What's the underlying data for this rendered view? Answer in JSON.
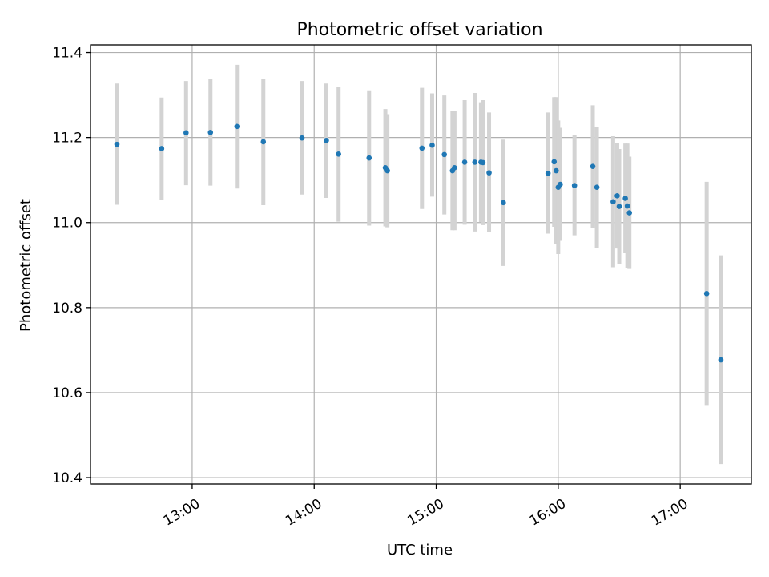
{
  "chart_data": {
    "type": "scatter",
    "title": "Photometric offset variation",
    "xlabel": "UTC time",
    "ylabel": "Photometric offset",
    "xlim": [
      "12:10",
      "17:35"
    ],
    "ylim": [
      10.385,
      11.418
    ],
    "x_ticks": [
      "13:00",
      "14:00",
      "15:00",
      "16:00",
      "17:00"
    ],
    "y_ticks": [
      10.4,
      10.6,
      10.8,
      11.0,
      11.2,
      11.4
    ],
    "y_tick_labels": [
      "10.4",
      "10.6",
      "10.8",
      "11.0",
      "11.2",
      "11.4"
    ],
    "grid": true,
    "point_color": "#1f77b4",
    "errorbar_color": "#d3d3d3",
    "points": [
      {
        "x": "12:23",
        "y": 11.184,
        "ylow": 11.042,
        "yhigh": 11.327
      },
      {
        "x": "12:45",
        "y": 11.174,
        "ylow": 11.054,
        "yhigh": 11.294
      },
      {
        "x": "12:57",
        "y": 11.211,
        "ylow": 11.088,
        "yhigh": 11.333
      },
      {
        "x": "13:09",
        "y": 11.212,
        "ylow": 11.087,
        "yhigh": 11.337
      },
      {
        "x": "13:22",
        "y": 11.226,
        "ylow": 11.08,
        "yhigh": 11.371
      },
      {
        "x": "13:35",
        "y": 11.19,
        "ylow": 11.041,
        "yhigh": 11.338
      },
      {
        "x": "13:54",
        "y": 11.199,
        "ylow": 11.066,
        "yhigh": 11.333
      },
      {
        "x": "14:06",
        "y": 11.193,
        "ylow": 11.058,
        "yhigh": 11.327
      },
      {
        "x": "14:12",
        "y": 11.161,
        "ylow": 11.002,
        "yhigh": 11.32
      },
      {
        "x": "14:27",
        "y": 11.152,
        "ylow": 10.993,
        "yhigh": 11.311
      },
      {
        "x": "14:35",
        "y": 11.129,
        "ylow": 10.991,
        "yhigh": 11.267
      },
      {
        "x": "14:36",
        "y": 11.122,
        "ylow": 10.989,
        "yhigh": 11.255
      },
      {
        "x": "14:53",
        "y": 11.175,
        "ylow": 11.032,
        "yhigh": 11.317
      },
      {
        "x": "14:58",
        "y": 11.182,
        "ylow": 11.061,
        "yhigh": 11.304
      },
      {
        "x": "15:04",
        "y": 11.16,
        "ylow": 11.019,
        "yhigh": 11.299
      },
      {
        "x": "15:08",
        "y": 11.122,
        "ylow": 10.982,
        "yhigh": 11.262
      },
      {
        "x": "15:09",
        "y": 11.129,
        "ylow": 10.982,
        "yhigh": 11.262
      },
      {
        "x": "15:14",
        "y": 11.142,
        "ylow": 10.995,
        "yhigh": 11.288
      },
      {
        "x": "15:19",
        "y": 11.142,
        "ylow": 10.979,
        "yhigh": 11.305
      },
      {
        "x": "15:22",
        "y": 11.142,
        "ylow": 11.001,
        "yhigh": 11.283
      },
      {
        "x": "15:23",
        "y": 11.141,
        "ylow": 10.994,
        "yhigh": 11.288
      },
      {
        "x": "15:26",
        "y": 11.117,
        "ylow": 10.977,
        "yhigh": 11.259
      },
      {
        "x": "15:33",
        "y": 11.047,
        "ylow": 10.898,
        "yhigh": 11.195
      },
      {
        "x": "15:55",
        "y": 11.116,
        "ylow": 10.974,
        "yhigh": 11.259
      },
      {
        "x": "15:58",
        "y": 11.143,
        "ylow": 10.99,
        "yhigh": 11.295
      },
      {
        "x": "15:59",
        "y": 11.122,
        "ylow": 10.95,
        "yhigh": 11.295
      },
      {
        "x": "16:00",
        "y": 11.083,
        "ylow": 10.926,
        "yhigh": 11.24
      },
      {
        "x": "16:01",
        "y": 11.09,
        "ylow": 10.957,
        "yhigh": 11.223
      },
      {
        "x": "16:08",
        "y": 11.087,
        "ylow": 10.97,
        "yhigh": 11.205
      },
      {
        "x": "16:17",
        "y": 11.132,
        "ylow": 10.987,
        "yhigh": 11.276
      },
      {
        "x": "16:19",
        "y": 11.083,
        "ylow": 10.941,
        "yhigh": 11.225
      },
      {
        "x": "16:27",
        "y": 11.049,
        "ylow": 10.895,
        "yhigh": 11.203
      },
      {
        "x": "16:29",
        "y": 11.063,
        "ylow": 10.939,
        "yhigh": 11.187
      },
      {
        "x": "16:30",
        "y": 11.038,
        "ylow": 10.902,
        "yhigh": 11.173
      },
      {
        "x": "16:33",
        "y": 11.057,
        "ylow": 10.928,
        "yhigh": 11.186
      },
      {
        "x": "16:34",
        "y": 11.039,
        "ylow": 10.892,
        "yhigh": 11.186
      },
      {
        "x": "16:35",
        "y": 11.023,
        "ylow": 10.891,
        "yhigh": 11.155
      },
      {
        "x": "17:13",
        "y": 10.833,
        "ylow": 10.571,
        "yhigh": 11.096
      },
      {
        "x": "17:20",
        "y": 10.677,
        "ylow": 10.432,
        "yhigh": 10.923
      }
    ]
  }
}
